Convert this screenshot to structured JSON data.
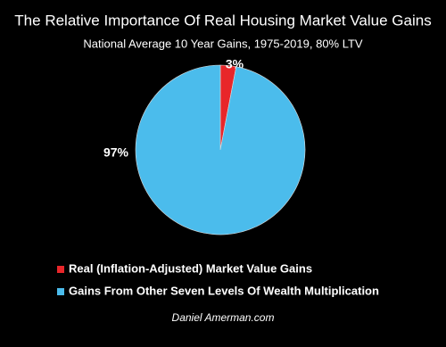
{
  "chart_data": {
    "type": "pie",
    "title": "The Relative Importance Of Real Housing Market Value Gains",
    "subtitle": "National Average 10 Year Gains, 1975-2019, 80% LTV",
    "categories": [
      "Real (Inflation-Adjusted) Market Value Gains",
      "Gains From Other Seven Levels Of Wealth Multiplication"
    ],
    "values": [
      3,
      97
    ],
    "value_labels": [
      "3%",
      "97%"
    ],
    "colors": [
      "#e8262a",
      "#4bbcec"
    ],
    "legend": "bottom-left",
    "footer": "Daniel Amerman.com"
  }
}
